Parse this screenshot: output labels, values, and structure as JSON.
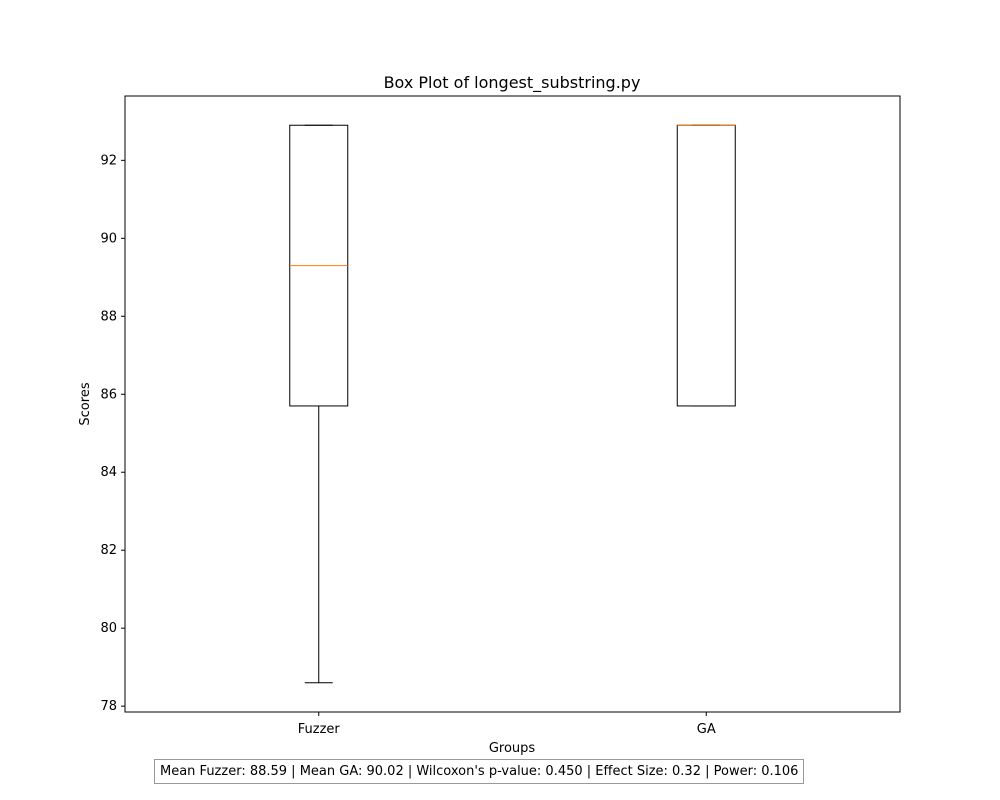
{
  "chart_data": {
    "type": "box",
    "title": "Box Plot of longest_substring.py",
    "xlabel": "Groups",
    "ylabel": "Scores",
    "ylim": [
      77.85,
      93.65
    ],
    "yticks": [
      78,
      80,
      82,
      84,
      86,
      88,
      90,
      92
    ],
    "categories": [
      "Fuzzer",
      "GA"
    ],
    "boxes": [
      {
        "name": "Fuzzer",
        "whisker_low": 78.6,
        "q1": 85.7,
        "median": 89.3,
        "q3": 92.9,
        "whisker_high": 92.9
      },
      {
        "name": "GA",
        "whisker_low": 85.7,
        "q1": 85.7,
        "median": 92.9,
        "q3": 92.9,
        "whisker_high": 92.9
      }
    ],
    "grid": false,
    "colors": {
      "box": "#000000",
      "median": "#ff7f0e"
    }
  },
  "stats_text": "Mean Fuzzer: 88.59 | Mean GA: 90.02 | Wilcoxon's p-value: 0.450 | Effect Size: 0.32 | Power: 0.106"
}
